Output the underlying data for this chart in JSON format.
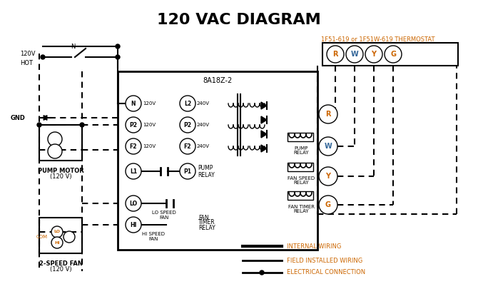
{
  "title": "120 VAC DIAGRAM",
  "title_fontsize": 16,
  "title_color": "#000000",
  "bg_color": "#ffffff",
  "line_color": "#000000",
  "dashed_color": "#000000",
  "orange_color": "#cc6600",
  "blue_color": "#336699",
  "thermostat_label": "1F51-619 or 1F51W-619 THERMOSTAT",
  "control_box_label": "8A18Z-2",
  "legend_items": [
    {
      "label": "INTERNAL WIRING",
      "style": "solid_thick"
    },
    {
      "label": "FIELD INSTALLED WIRING",
      "style": "solid_thin"
    },
    {
      "label": "ELECTRICAL CONNECTION",
      "style": "dot_solid"
    }
  ]
}
